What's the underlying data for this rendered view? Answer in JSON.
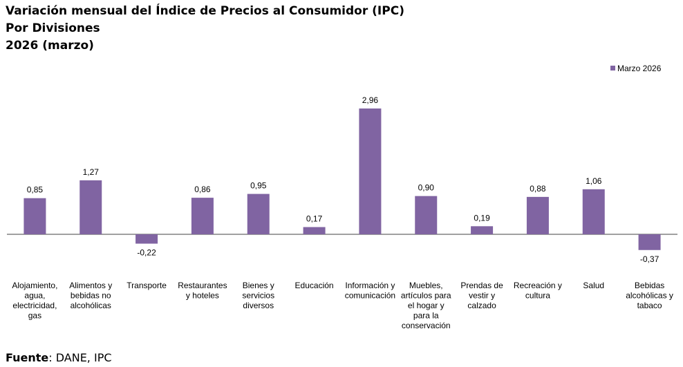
{
  "title": {
    "line1": "Variación mensual del Índice de Precios al Consumidor (IPC)",
    "line2": "Por Divisiones",
    "line3": "2026 (marzo)"
  },
  "source": {
    "label": "Fuente",
    "text": ": DANE, IPC"
  },
  "colors": {
    "bar": "#8064a2",
    "axis": "#404040"
  },
  "chart_data": {
    "type": "bar",
    "title": "Variación mensual del Índice de Precios al Consumidor (IPC)",
    "subtitle": "Por Divisiones — 2026 (marzo)",
    "categories": [
      "Alojamiento, agua, electricidad, gas",
      "Alimentos y bebidas no alcohólicas",
      "Transporte",
      "Restaurantes y hoteles",
      "Bienes y servicios diversos",
      "Educación",
      "Información y comunicación",
      "Muebles, artículos para el hogar y para la conservación",
      "Prendas de vestir y calzado",
      "Recreación y cultura",
      "Salud",
      "Bebidas alcohólicas y tabaco"
    ],
    "category_lines": [
      [
        "Alojamiento,",
        "agua,",
        "electricidad,",
        "gas"
      ],
      [
        "Alimentos y",
        "bebidas no",
        "alcohólicas"
      ],
      [
        "Transporte"
      ],
      [
        "Restaurantes",
        "y hoteles"
      ],
      [
        "Bienes y",
        "servicios",
        "diversos"
      ],
      [
        "Educación"
      ],
      [
        "Información y",
        "comunicación"
      ],
      [
        "Muebles,",
        "artículos para",
        "el hogar y",
        "para la",
        "conservación"
      ],
      [
        "Prendas de",
        "vestir y",
        "calzado"
      ],
      [
        "Recreación y",
        "cultura"
      ],
      [
        "Salud"
      ],
      [
        "Bebidas",
        "alcohólicas y",
        "tabaco"
      ]
    ],
    "series": [
      {
        "name": "Marzo 2026",
        "values": [
          0.85,
          1.27,
          -0.22,
          0.86,
          0.95,
          0.17,
          2.96,
          0.9,
          0.19,
          0.88,
          1.06,
          -0.37
        ],
        "labels": [
          "0,85",
          "1,27",
          "-0,22",
          "0,86",
          "0,95",
          "0,17",
          "2,96",
          "0,90",
          "0,19",
          "0,88",
          "1,06",
          "-0,37"
        ]
      }
    ],
    "legend": "top-right",
    "grid": false
  }
}
